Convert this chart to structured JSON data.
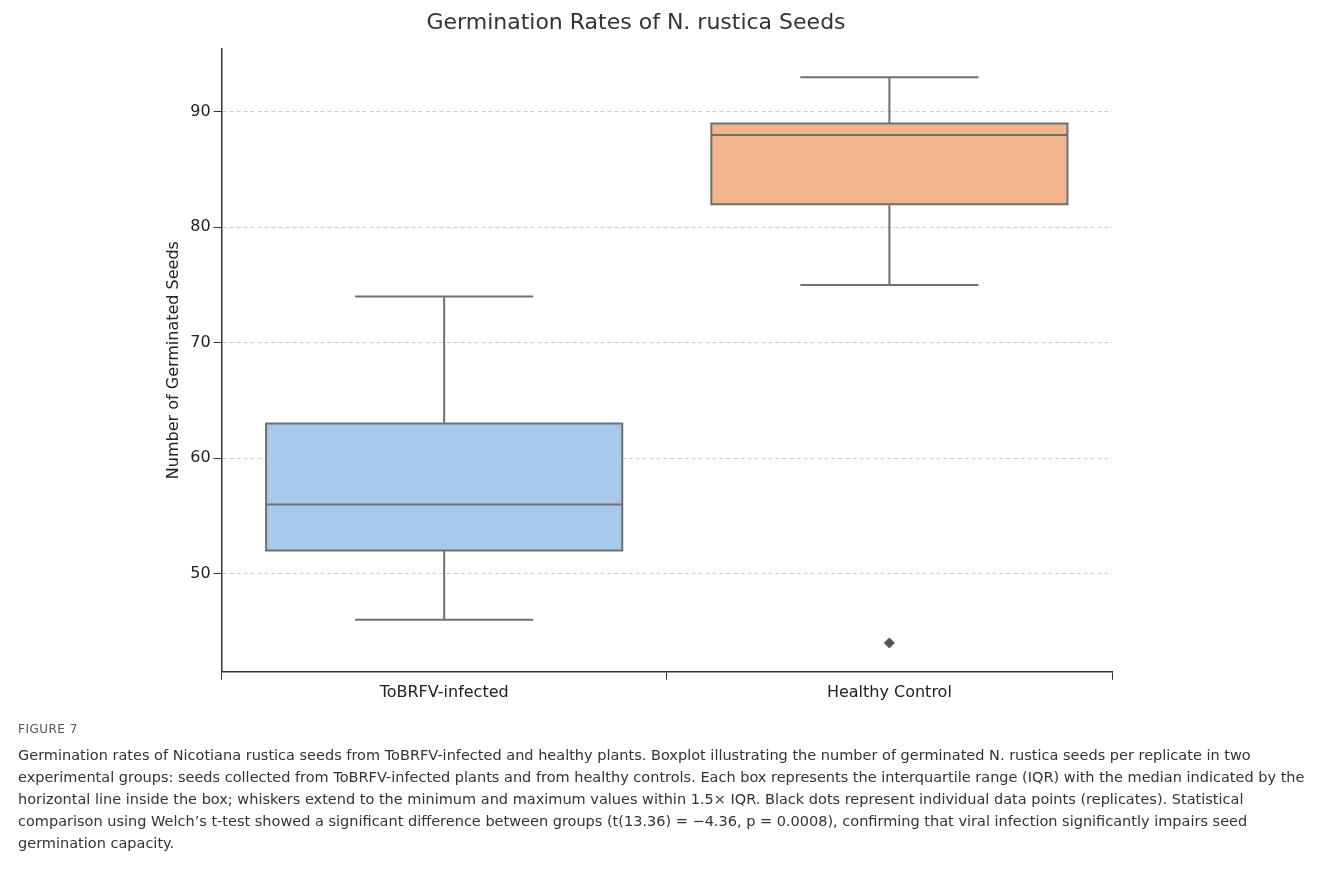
{
  "chart_data": {
    "type": "box",
    "title": "Germination Rates of N. rustica Seeds",
    "ylabel": "Number of Germinated Seeds",
    "categories": [
      "ToBRFV-infected",
      "Healthy Control"
    ],
    "boxes": [
      {
        "low": 46,
        "q1": 52,
        "median": 56,
        "q3": 63,
        "high": 74
      },
      {
        "low": 75,
        "q1": 82,
        "median": 88,
        "q3": 89,
        "high": 93,
        "outliers": [
          44
        ]
      }
    ],
    "colors": [
      "#a8c8ec",
      "#f0b48e"
    ],
    "ylim": [
      41.5,
      95.5
    ],
    "yticks": [
      50,
      60,
      70,
      80,
      90
    ],
    "grid": "y",
    "marker": "diamond",
    "annotations": [
      "FIGURE 7",
      "Germination rates of Nicotiana rustica seeds from ToBRFV-infected and healthy plants. Boxplot illustrating the number of germinated N. rustica seeds per replicate in two experimental groups: seeds collected from ToBRFV-infected plants and from healthy controls. Each box represents the interquartile range (IQR) with the median indicated by the horizontal line inside the box; whiskers extend to the minimum and maximum values within 1.5× IQR. Black dots represent individual data points (replicates). Statistical comparison using Welch’s t-test showed a significant difference between groups (t(13.36) = −4.36, p = 0.0008), confirming that viral infection significantly impairs seed germination capacity."
    ]
  }
}
